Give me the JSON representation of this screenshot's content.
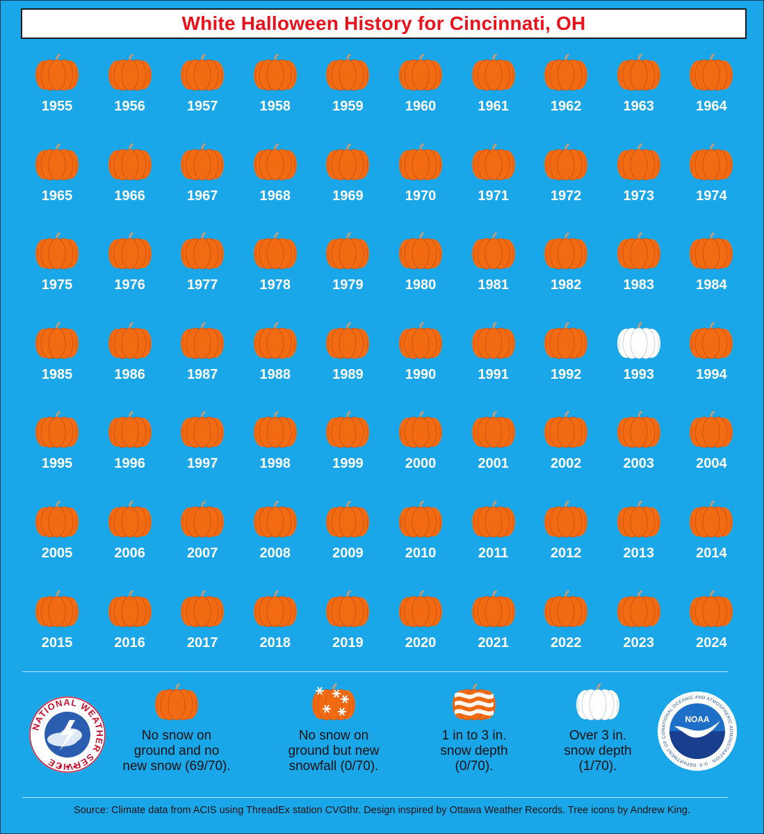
{
  "title": "White Halloween History for Cincinnati, OH",
  "colors": {
    "background": "#1aa7ea",
    "title_text": "#e8121c",
    "pumpkin_orange": "#f26a12",
    "pumpkin_white": "#ffffff"
  },
  "chart_data": {
    "type": "table",
    "title": "White Halloween History for Cincinnati, OH",
    "categories": [
      "No snow on ground and no new snow",
      "No snow on ground but new snowfall",
      "1 in to 3 in. snow depth",
      "Over 3 in. snow depth"
    ],
    "years": [
      1955,
      1956,
      1957,
      1958,
      1959,
      1960,
      1961,
      1962,
      1963,
      1964,
      1965,
      1966,
      1967,
      1968,
      1969,
      1970,
      1971,
      1972,
      1973,
      1974,
      1975,
      1976,
      1977,
      1978,
      1979,
      1980,
      1981,
      1982,
      1983,
      1984,
      1985,
      1986,
      1987,
      1988,
      1989,
      1990,
      1991,
      1992,
      1993,
      1994,
      1995,
      1996,
      1997,
      1998,
      1999,
      2000,
      2001,
      2002,
      2003,
      2004,
      2005,
      2006,
      2007,
      2008,
      2009,
      2010,
      2011,
      2012,
      2013,
      2014,
      2015,
      2016,
      2017,
      2018,
      2019,
      2020,
      2021,
      2022,
      2023,
      2024
    ],
    "category_by_year": [
      0,
      0,
      0,
      0,
      0,
      0,
      0,
      0,
      0,
      0,
      0,
      0,
      0,
      0,
      0,
      0,
      0,
      0,
      0,
      0,
      0,
      0,
      0,
      0,
      0,
      0,
      0,
      0,
      0,
      0,
      0,
      0,
      0,
      0,
      0,
      0,
      0,
      0,
      3,
      0,
      0,
      0,
      0,
      0,
      0,
      0,
      0,
      0,
      0,
      0,
      0,
      0,
      0,
      0,
      0,
      0,
      0,
      0,
      0,
      0,
      0,
      0,
      0,
      0,
      0,
      0,
      0,
      0,
      0,
      0
    ],
    "counts": [
      69,
      0,
      0,
      1
    ],
    "total": 70
  },
  "legend": [
    {
      "icon": "orange-pumpkin-icon",
      "lines": [
        "No snow on",
        "ground and no",
        "new snow (69/70)."
      ]
    },
    {
      "icon": "snowflake-pumpkin-icon",
      "lines": [
        "No snow on",
        "ground but new",
        "snowfall (0/70)."
      ]
    },
    {
      "icon": "striped-pumpkin-icon",
      "lines": [
        "1 in to 3 in.",
        "snow depth",
        "(0/70)."
      ]
    },
    {
      "icon": "white-pumpkin-icon",
      "lines": [
        "Over 3 in.",
        "snow depth",
        "(1/70)."
      ]
    }
  ],
  "logos": {
    "nws": {
      "icon": "nws-logo-icon",
      "text": "NATIONAL WEATHER SERVICE"
    },
    "noaa": {
      "icon": "noaa-logo-icon",
      "text": "NOAA",
      "ring_text": "NATIONAL OCEANIC AND ATMOSPHERIC ADMINISTRATION · U.S. DEPARTMENT OF COMMERCE"
    }
  },
  "source": "Source: Climate data from ACIS using ThreadEx station CVGthr. Design inspired by Ottawa Weather Records. Tree icons by Andrew King."
}
